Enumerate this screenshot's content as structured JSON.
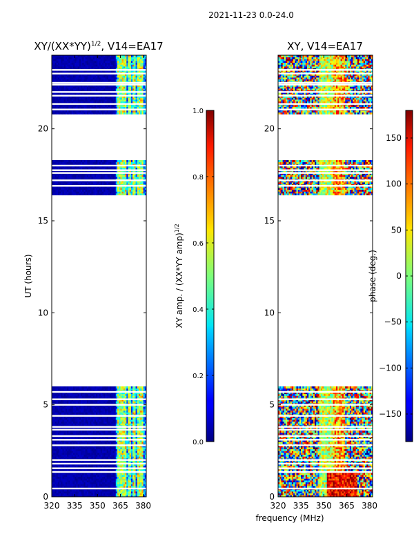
{
  "suptitle": "2021-11-23 0.0-24.0",
  "colors": {
    "background": "#ffffff",
    "masked_gap": "#ffffff",
    "axis": "#000000",
    "low_amp": "#00007f"
  },
  "chart_data": [
    {
      "type": "heatmap",
      "name": "normalized-xy-amplitude",
      "title": "XY/(XX*YY)",
      "title_sup": "1/2",
      "title_suffix": ", V14=EA17",
      "xlabel": "",
      "ylabel": "UT (hours)",
      "xlim": [
        320,
        382
      ],
      "ylim": [
        0,
        24
      ],
      "xticks": [
        320,
        335,
        350,
        365,
        380
      ],
      "yticks": [
        0,
        5,
        10,
        15,
        20
      ],
      "colormap": "jet",
      "colorbar": {
        "label": "XY amp. / (XX*YY amp)",
        "label_sup": "1/2",
        "range": [
          0.0,
          1.0
        ],
        "ticks": [
          "0.0",
          "0.2",
          "0.4",
          "0.6",
          "0.8",
          "1.0"
        ]
      },
      "data_blocks_hours": [
        [
          0.0,
          6.0
        ],
        [
          16.4,
          18.3
        ],
        [
          20.8,
          24.0
        ]
      ],
      "gap_lines_hours": [
        0.45,
        1.35,
        1.55,
        1.8,
        2.0,
        2.8,
        3.1,
        3.3,
        3.65,
        3.8,
        4.4,
        5.0,
        5.3,
        5.7,
        16.9,
        17.2,
        17.6,
        17.75,
        18.0,
        21.05,
        21.35,
        21.8,
        22.0,
        22.4,
        22.5,
        23.0,
        23.2
      ],
      "typical_values": [
        {
          "freq_range_MHz": [
            320,
            362
          ],
          "value": 0.02
        },
        {
          "freq_range_MHz": [
            362,
            382
          ],
          "value": 0.3
        }
      ]
    },
    {
      "type": "heatmap",
      "name": "xy-phase",
      "title": "XY, V14=EA17",
      "xlabel": "frequency (MHz)",
      "ylabel": "",
      "xlim": [
        320,
        382
      ],
      "ylim": [
        0,
        24
      ],
      "xticks": [
        320,
        335,
        350,
        365,
        380
      ],
      "yticks": [
        0,
        5,
        10,
        15,
        20
      ],
      "colormap": "jet",
      "colorbar": {
        "label": "phase (deg.)",
        "range": [
          -180,
          180
        ],
        "ticks": [
          "150",
          "100",
          "50",
          "0",
          "−50",
          "−100",
          "−150"
        ]
      },
      "data_blocks_hours": [
        [
          0.0,
          6.0
        ],
        [
          16.4,
          18.3
        ],
        [
          20.8,
          24.0
        ]
      ],
      "gap_lines_hours": [
        0.45,
        1.35,
        1.55,
        1.8,
        2.0,
        2.8,
        3.1,
        3.3,
        3.65,
        3.8,
        4.4,
        5.0,
        5.3,
        5.7,
        16.9,
        17.2,
        17.6,
        17.75,
        18.0,
        21.05,
        21.35,
        21.8,
        22.0,
        22.4,
        22.5,
        23.0,
        23.2
      ],
      "phase_pattern": "noisy full-range phase with vertical band structure; greener band near 350-355 MHz"
    }
  ]
}
